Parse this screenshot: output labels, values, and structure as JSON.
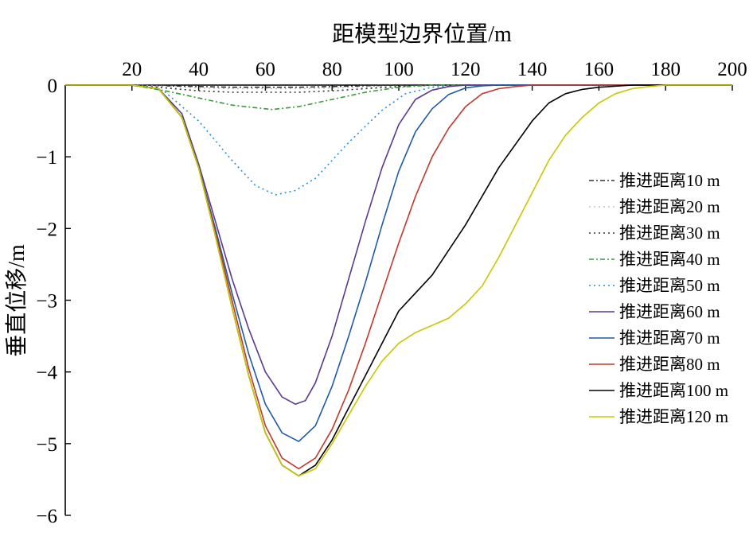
{
  "chart_data": {
    "type": "line",
    "xlabel": "距模型边界位置/m",
    "ylabel": "垂直位移/m",
    "xlim": [
      0,
      200
    ],
    "ylim": [
      -6,
      0
    ],
    "x_ticks": [
      20,
      40,
      60,
      80,
      100,
      120,
      140,
      160,
      180,
      200
    ],
    "y_ticks": [
      0,
      -1,
      -2,
      -3,
      -4,
      -5,
      -6
    ],
    "x_tick_labels": [
      "20",
      "40",
      "60",
      "80",
      "100",
      "120",
      "140",
      "160",
      "180",
      "200"
    ],
    "y_tick_labels": [
      "0",
      "−1",
      "−2",
      "−3",
      "−4",
      "−5",
      "−6"
    ],
    "x_axis_position": "top",
    "grid": false,
    "legend_position": "right",
    "series": [
      {
        "name": "推进距离10 m",
        "color": "#333333",
        "style": "dashdot",
        "x": [
          0,
          20,
          30,
          40,
          50,
          60,
          70,
          80,
          90,
          100,
          110,
          200
        ],
        "y": [
          0,
          0,
          -0.01,
          -0.02,
          -0.03,
          -0.03,
          -0.03,
          -0.02,
          -0.01,
          0,
          0,
          0
        ]
      },
      {
        "name": "推进距离20 m",
        "color": "#bfbfbf",
        "style": "dotted",
        "x": [
          0,
          20,
          30,
          40,
          50,
          60,
          70,
          80,
          90,
          100,
          110,
          120,
          200
        ],
        "y": [
          0,
          0,
          -0.02,
          -0.04,
          -0.05,
          -0.05,
          -0.05,
          -0.04,
          -0.03,
          -0.02,
          -0.01,
          0,
          0
        ]
      },
      {
        "name": "推进距离30 m",
        "color": "#333333",
        "style": "dotted",
        "x": [
          0,
          20,
          30,
          40,
          50,
          60,
          70,
          80,
          90,
          100,
          110,
          200
        ],
        "y": [
          0,
          0,
          -0.04,
          -0.08,
          -0.1,
          -0.1,
          -0.1,
          -0.08,
          -0.05,
          -0.02,
          0,
          0
        ]
      },
      {
        "name": "推进距离40 m",
        "color": "#3a9a3a",
        "style": "dashdot",
        "x": [
          0,
          20,
          30,
          40,
          50,
          62,
          70,
          80,
          90,
          100,
          110,
          200
        ],
        "y": [
          0,
          0,
          -0.08,
          -0.18,
          -0.28,
          -0.34,
          -0.3,
          -0.2,
          -0.1,
          -0.03,
          0,
          0
        ]
      },
      {
        "name": "推进距离50 m",
        "color": "#1e90e0",
        "style": "dotted",
        "x": [
          0,
          20,
          26,
          30,
          40,
          50,
          57,
          63,
          69,
          75,
          85,
          95,
          102,
          110,
          120,
          200
        ],
        "y": [
          0,
          0,
          -0.03,
          -0.1,
          -0.5,
          -1.05,
          -1.4,
          -1.53,
          -1.47,
          -1.3,
          -0.8,
          -0.35,
          -0.12,
          -0.03,
          0,
          0
        ]
      },
      {
        "name": "推进距离60 m",
        "color": "#5b3a8c",
        "style": "solid",
        "x": [
          0,
          20,
          28,
          35,
          40,
          45,
          50,
          55,
          60,
          65,
          69,
          72,
          75,
          80,
          85,
          90,
          95,
          100,
          105,
          110,
          115,
          120,
          200
        ],
        "y": [
          0,
          0,
          -0.05,
          -0.4,
          -1.1,
          -1.9,
          -2.7,
          -3.4,
          -4.0,
          -4.35,
          -4.45,
          -4.4,
          -4.15,
          -3.5,
          -2.7,
          -1.9,
          -1.15,
          -0.55,
          -0.2,
          -0.07,
          -0.02,
          0,
          0
        ]
      },
      {
        "name": "推进距离70 m",
        "color": "#1f5aa6",
        "style": "solid",
        "x": [
          0,
          20,
          28,
          35,
          40,
          45,
          50,
          55,
          60,
          65,
          70,
          75,
          80,
          85,
          90,
          95,
          100,
          105,
          110,
          115,
          120,
          125,
          130,
          200
        ],
        "y": [
          0,
          0,
          -0.05,
          -0.45,
          -1.15,
          -2.0,
          -2.9,
          -3.75,
          -4.45,
          -4.85,
          -4.97,
          -4.75,
          -4.2,
          -3.5,
          -2.75,
          -1.95,
          -1.2,
          -0.65,
          -0.33,
          -0.13,
          -0.04,
          -0.01,
          0,
          0
        ]
      },
      {
        "name": "推进距离80 m",
        "color": "#c0392b",
        "style": "solid",
        "x": [
          0,
          20,
          28,
          35,
          40,
          45,
          50,
          55,
          60,
          65,
          70,
          75,
          80,
          85,
          90,
          95,
          100,
          105,
          110,
          115,
          120,
          125,
          130,
          135,
          140,
          200
        ],
        "y": [
          0,
          0,
          -0.05,
          -0.45,
          -1.15,
          -2.05,
          -3.0,
          -3.95,
          -4.75,
          -5.2,
          -5.35,
          -5.2,
          -4.8,
          -4.25,
          -3.6,
          -2.9,
          -2.2,
          -1.55,
          -1.0,
          -0.6,
          -0.3,
          -0.12,
          -0.05,
          -0.02,
          0,
          0
        ]
      },
      {
        "name": "推进距离100 m",
        "color": "#000000",
        "style": "solid",
        "x": [
          0,
          20,
          28,
          35,
          40,
          45,
          50,
          55,
          60,
          65,
          70,
          75,
          80,
          85,
          90,
          95,
          100,
          110,
          120,
          130,
          140,
          145,
          150,
          155,
          160,
          170,
          200
        ],
        "y": [
          0,
          0,
          -0.05,
          -0.45,
          -1.15,
          -2.1,
          -3.1,
          -4.05,
          -4.85,
          -5.3,
          -5.45,
          -5.3,
          -4.95,
          -4.5,
          -4.05,
          -3.6,
          -3.15,
          -2.65,
          -1.95,
          -1.15,
          -0.5,
          -0.25,
          -0.12,
          -0.06,
          -0.03,
          0,
          0
        ]
      },
      {
        "name": "推进距离120 m",
        "color": "#c8c800",
        "style": "solid",
        "x": [
          0,
          20,
          28,
          35,
          40,
          45,
          50,
          55,
          60,
          65,
          70,
          75,
          80,
          85,
          90,
          95,
          100,
          105,
          110,
          115,
          120,
          125,
          130,
          135,
          140,
          145,
          150,
          155,
          160,
          165,
          170,
          175,
          180,
          190,
          200
        ],
        "y": [
          0,
          0,
          -0.05,
          -0.45,
          -1.15,
          -2.1,
          -3.1,
          -4.05,
          -4.85,
          -5.3,
          -5.45,
          -5.35,
          -5.0,
          -4.6,
          -4.2,
          -3.85,
          -3.6,
          -3.45,
          -3.35,
          -3.25,
          -3.05,
          -2.8,
          -2.4,
          -1.95,
          -1.5,
          -1.05,
          -0.7,
          -0.45,
          -0.25,
          -0.12,
          -0.05,
          -0.02,
          0,
          0,
          0
        ]
      }
    ]
  }
}
